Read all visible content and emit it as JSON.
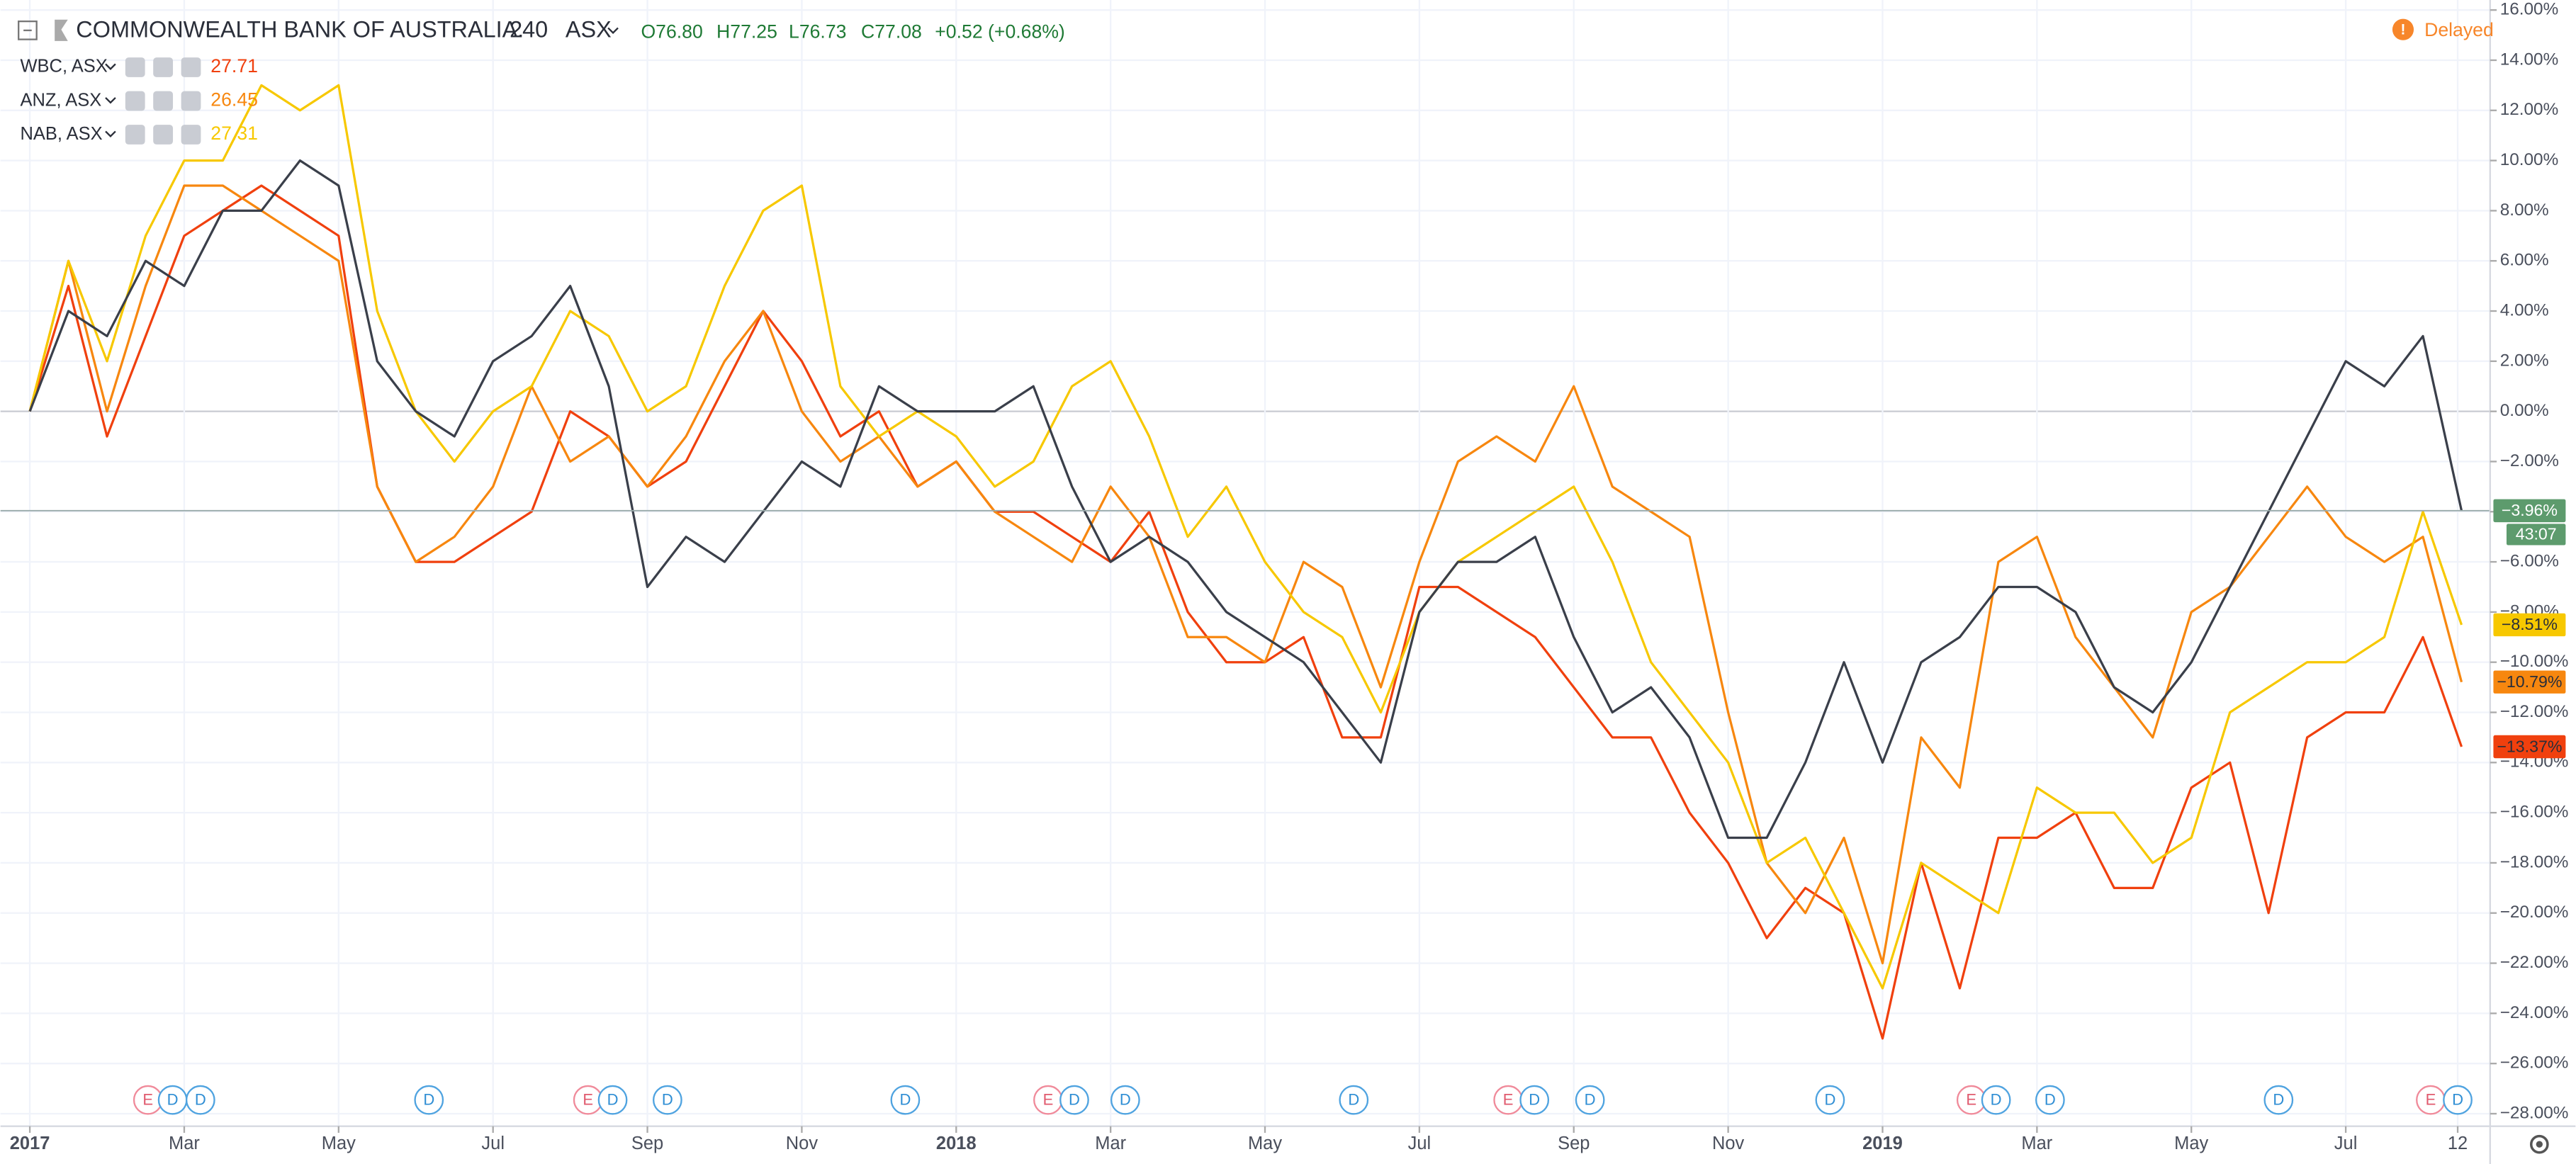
{
  "chart_data": {
    "type": "line",
    "title": "COMMONWEALTH BANK OF AUSTRALIA.",
    "interval": "240",
    "exchange": "ASX",
    "ohlc": [
      "O76.80",
      "H77.25",
      "L76.73",
      "C77.08"
    ],
    "change": "+0.52 (+0.68%)",
    "status": "Delayed",
    "countdown": "43:07",
    "grid": true,
    "xlim": [
      -0.38,
      31.87
    ],
    "xticks": [
      {
        "value": 0,
        "label": "2017"
      },
      {
        "value": 2,
        "label": "Mar"
      },
      {
        "value": 4,
        "label": "May"
      },
      {
        "value": 6,
        "label": "Jul"
      },
      {
        "value": 8,
        "label": "Sep"
      },
      {
        "value": 10,
        "label": "Nov"
      },
      {
        "value": 12,
        "label": "2018"
      },
      {
        "value": 14,
        "label": "Mar"
      },
      {
        "value": 16,
        "label": "May"
      },
      {
        "value": 18,
        "label": "Jul"
      },
      {
        "value": 20,
        "label": "Sep"
      },
      {
        "value": 22,
        "label": "Nov"
      },
      {
        "value": 24,
        "label": "2019"
      },
      {
        "value": 26,
        "label": "Mar"
      },
      {
        "value": 28,
        "label": "May"
      },
      {
        "value": 30,
        "label": "Jul"
      },
      {
        "value": 31.45,
        "label": "12"
      }
    ],
    "ylim": [
      -28.5,
      16.4
    ],
    "yticks": [
      {
        "value": 16,
        "label": "16.00%"
      },
      {
        "value": 14,
        "label": "14.00%"
      },
      {
        "value": 12,
        "label": "12.00%"
      },
      {
        "value": 10,
        "label": "10.00%"
      },
      {
        "value": 8,
        "label": "8.00%"
      },
      {
        "value": 6,
        "label": "6.00%"
      },
      {
        "value": 4,
        "label": "4.00%"
      },
      {
        "value": 2,
        "label": "2.00%"
      },
      {
        "value": 0,
        "label": "0.00%"
      },
      {
        "value": -2,
        "label": "−2.00%"
      },
      {
        "value": -4,
        "label": "−4.00%"
      },
      {
        "value": -6,
        "label": "−6.00%"
      },
      {
        "value": -8,
        "label": "−8.00%"
      },
      {
        "value": -10,
        "label": "−10.00%"
      },
      {
        "value": -12,
        "label": "−12.00%"
      },
      {
        "value": -14,
        "label": "−14.00%"
      },
      {
        "value": -16,
        "label": "−16.00%"
      },
      {
        "value": -18,
        "label": "−18.00%"
      },
      {
        "value": -20,
        "label": "−20.00%"
      },
      {
        "value": -22,
        "label": "−22.00%"
      },
      {
        "value": -24,
        "label": "−24.00%"
      },
      {
        "value": -26,
        "label": "−26.00%"
      },
      {
        "value": -28,
        "label": "−28.00%"
      }
    ],
    "x": [
      0,
      0.5,
      1,
      1.5,
      2,
      2.5,
      3,
      3.5,
      4,
      4.5,
      5,
      5.5,
      6,
      6.5,
      7,
      7.5,
      8,
      8.5,
      9,
      9.5,
      10,
      10.5,
      11,
      11.5,
      12,
      12.5,
      13,
      13.5,
      14,
      14.5,
      15,
      15.5,
      16,
      16.5,
      17,
      17.5,
      18,
      18.5,
      19,
      19.5,
      20,
      20.5,
      21,
      21.5,
      22,
      22.5,
      23,
      23.5,
      24,
      24.5,
      25,
      25.5,
      26,
      26.5,
      27,
      27.5,
      28,
      28.5,
      29,
      29.5,
      30,
      30.5,
      31,
      31.5
    ],
    "series": [
      {
        "name": "WBC, ASX",
        "price": "27.71",
        "color": "#f0400e",
        "values": [
          0,
          5,
          -1,
          3,
          7,
          8,
          9,
          8,
          7,
          -3,
          -6,
          -6,
          -5,
          -4,
          0,
          -1,
          -3,
          -2,
          1,
          4,
          2,
          -1,
          0,
          -3,
          -2,
          -4,
          -4,
          -5,
          -6,
          -4,
          -8,
          -10,
          -10,
          -9,
          -13,
          -13,
          -7,
          -7,
          -8,
          -9,
          -11,
          -13,
          -13,
          -16,
          -18,
          -21,
          -19,
          -20,
          -25,
          -18,
          -23,
          -17,
          -17,
          -16,
          -19,
          -19,
          -15,
          -14,
          -20,
          -13,
          -12,
          -12,
          -9,
          -13.37
        ],
        "last_value": {
          "value": -13.37,
          "label": "−13.37%"
        }
      },
      {
        "name": "ANZ, ASX",
        "price": "26.45",
        "color": "#f7870f",
        "values": [
          0,
          6,
          0,
          5,
          9,
          9,
          8,
          7,
          6,
          -3,
          -6,
          -5,
          -3,
          1,
          -2,
          -1,
          -3,
          -1,
          2,
          4,
          0,
          -2,
          -1,
          -3,
          -2,
          -4,
          -5,
          -6,
          -3,
          -5,
          -9,
          -9,
          -10,
          -6,
          -7,
          -11,
          -6,
          -2,
          -1,
          -2,
          1,
          -3,
          -4,
          -5,
          -12,
          -18,
          -20,
          -17,
          -22,
          -13,
          -15,
          -6,
          -5,
          -9,
          -11,
          -13,
          -8,
          -7,
          -5,
          -3,
          -5,
          -6,
          -5,
          -10.79
        ],
        "last_value": {
          "value": -10.79,
          "label": "−10.79%"
        }
      },
      {
        "name": "NAB, ASX",
        "price": "27.31",
        "color": "#f7c800",
        "values": [
          0,
          6,
          2,
          7,
          10,
          10,
          13,
          12,
          13,
          4,
          0,
          -2,
          0,
          1,
          4,
          3,
          0,
          1,
          5,
          8,
          9,
          1,
          -1,
          0,
          -1,
          -3,
          -2,
          1,
          2,
          -1,
          -5,
          -3,
          -6,
          -8,
          -9,
          -12,
          -8,
          -6,
          -5,
          -4,
          -3,
          -6,
          -10,
          -12,
          -14,
          -18,
          -17,
          -20,
          -23,
          -18,
          -19,
          -20,
          -15,
          -16,
          -16,
          -18,
          -17,
          -12,
          -11,
          -10,
          -10,
          -9,
          -4,
          -8.51
        ],
        "last_value": {
          "value": -8.51,
          "label": "−8.51%"
        }
      },
      {
        "color": "#3a3f4a",
        "values": [
          0,
          4,
          3,
          6,
          5,
          8,
          8,
          10,
          9,
          2,
          0,
          -1,
          2,
          3,
          5,
          1,
          -7,
          -5,
          -6,
          -4,
          -2,
          -3,
          1,
          0,
          0,
          0,
          1,
          -3,
          -6,
          -5,
          -6,
          -8,
          -9,
          -10,
          -12,
          -14,
          -8,
          -6,
          -6,
          -5,
          -9,
          -12,
          -11,
          -13,
          -17,
          -17,
          -14,
          -10,
          -14,
          -10,
          -9,
          -7,
          -7,
          -8,
          -11,
          -12,
          -10,
          -7,
          -4,
          -1,
          2,
          1,
          3,
          -3.96
        ],
        "last_value": {
          "value": -3.96,
          "label": "−3.96%"
        }
      }
    ],
    "events": [
      {
        "label": "E",
        "x": 1.53
      },
      {
        "label": "D",
        "x": 1.85
      },
      {
        "label": "D",
        "x": 2.21
      },
      {
        "label": "D",
        "x": 5.17
      },
      {
        "label": "E",
        "x": 7.23
      },
      {
        "label": "D",
        "x": 7.55
      },
      {
        "label": "D",
        "x": 8.26
      },
      {
        "label": "D",
        "x": 11.34
      },
      {
        "label": "E",
        "x": 13.19
      },
      {
        "label": "D",
        "x": 13.53
      },
      {
        "label": "D",
        "x": 14.19
      },
      {
        "label": "D",
        "x": 17.15
      },
      {
        "label": "E",
        "x": 19.15
      },
      {
        "label": "D",
        "x": 19.49
      },
      {
        "label": "D",
        "x": 20.21
      },
      {
        "label": "D",
        "x": 23.32
      },
      {
        "label": "E",
        "x": 25.15
      },
      {
        "label": "D",
        "x": 25.47
      },
      {
        "label": "D",
        "x": 26.17
      },
      {
        "label": "D",
        "x": 29.13
      },
      {
        "label": "E",
        "x": 31.1
      },
      {
        "label": "D",
        "x": 31.45
      }
    ]
  }
}
